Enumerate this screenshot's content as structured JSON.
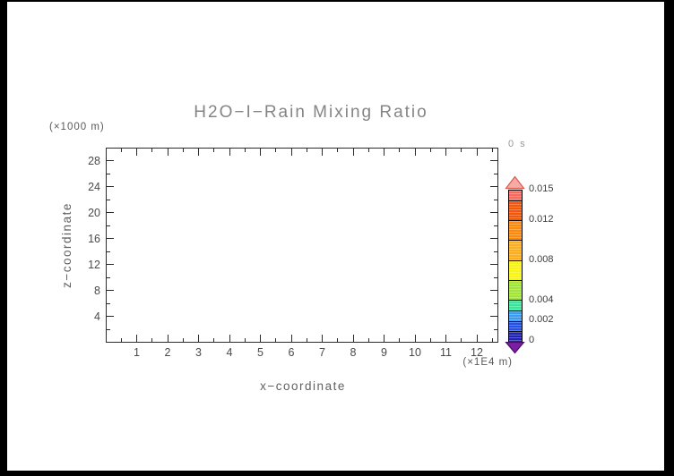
{
  "page": {
    "background": "#000000",
    "canvas_background": "#ffffff"
  },
  "chart_data": {
    "type": "heatmap",
    "title": "H2O−I−Rain Mixing Ratio",
    "time_label": "0 s",
    "xlabel": "x−coordinate",
    "x_unit_label": "(×1E4 m)",
    "ylabel": "z−coordinate",
    "y_unit_label": "(×1000 m)",
    "xlim": [
      0,
      12.7
    ],
    "ylim": [
      0,
      30
    ],
    "grid": false,
    "series": [],
    "x_major_ticks": [
      1,
      2,
      3,
      4,
      5,
      6,
      7,
      8,
      9,
      10,
      11,
      12
    ],
    "x_minor_ticks": [
      0.5,
      1.5,
      2.5,
      3.5,
      4.5,
      5.5,
      6.5,
      7.5,
      8.5,
      9.5,
      10.5,
      11.5,
      12.5
    ],
    "y_major_ticks": [
      4,
      8,
      12,
      16,
      20,
      24,
      28
    ],
    "y_minor_ticks": [
      2,
      6,
      10,
      14,
      18,
      22,
      26
    ],
    "colorbar": {
      "position": "right",
      "min": 0,
      "max": 0.015,
      "tick_labels": [
        "0.015",
        "0.012",
        "0.008",
        "0.004",
        "0.002",
        "0"
      ],
      "tick_values": [
        0.015,
        0.012,
        0.008,
        0.004,
        0.002,
        0
      ],
      "bands": [
        {
          "from": 0.014,
          "to": 0.015,
          "color": "#f9695e"
        },
        {
          "from": 0.012,
          "to": 0.014,
          "color": "#f2570b"
        },
        {
          "from": 0.01,
          "to": 0.012,
          "color": "#fb8a0e"
        },
        {
          "from": 0.008,
          "to": 0.01,
          "color": "#fcae1e"
        },
        {
          "from": 0.006,
          "to": 0.008,
          "color": "#f8f414"
        },
        {
          "from": 0.004,
          "to": 0.006,
          "color": "#a2e437"
        },
        {
          "from": 0.003,
          "to": 0.004,
          "color": "#3be39c"
        },
        {
          "from": 0.002,
          "to": 0.003,
          "color": "#3c9bf0"
        },
        {
          "from": 0.001,
          "to": 0.002,
          "color": "#2451e8"
        },
        {
          "from": 0.0,
          "to": 0.001,
          "color": "#2121b4"
        }
      ],
      "over_arrow_color": "#f5aca4",
      "over_arrow_outline": "#e0574e",
      "under_arrow_color": "#7a1fa2",
      "under_arrow_outline": "#470c66"
    }
  }
}
